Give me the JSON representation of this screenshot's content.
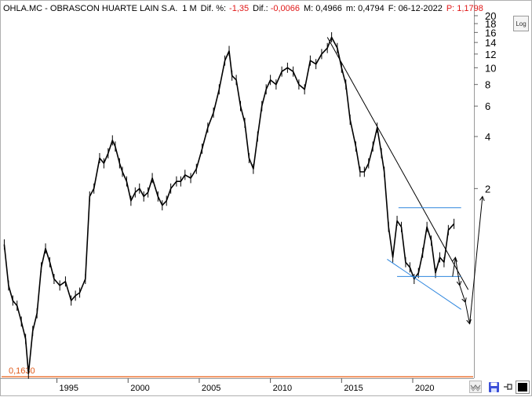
{
  "header": {
    "ticker": "OHLA.MC - OBRASCON HUARTE LAIN S.A.",
    "period": "1 M",
    "dif_pct_label": "Dif. %:",
    "dif_pct_value": "-1,35",
    "dif_label": "Dif.:",
    "dif_value": "-0,0066",
    "max_label": "M:",
    "max_value": "0,4966",
    "min_label": "m:",
    "min_value": "0,4794",
    "date_label": "F:",
    "date_value": "06-12-2022",
    "price_label": "P:",
    "price_value": "1,1798"
  },
  "toolbar": {
    "log_label": "Log",
    "wave_icon": "wave-icon",
    "save_icon": "floppy-disk-icon",
    "pin_icon": "pin-icon",
    "color_icon": "color-swatch-icon"
  },
  "colors": {
    "price": "#000000",
    "trendline": "#000000",
    "channel": "#2e86de",
    "support": "#e8590c",
    "value_label": "#e05a1a",
    "negative": "#e01818"
  },
  "chart_data": {
    "type": "line",
    "scale": "log",
    "interval": "monthly",
    "ylim": [
      0.16,
      20
    ],
    "xlim": [
      1991.0,
      2024.3
    ],
    "y_ticks": [
      2,
      4,
      6,
      8,
      10,
      12,
      14,
      16,
      18,
      20
    ],
    "x_ticks": [
      1995,
      2000,
      2005,
      2010,
      2015,
      2020
    ],
    "grid": false,
    "support_level": {
      "value": 0.163,
      "label": "0,1630"
    },
    "series": [
      {
        "x": [
          1991.3,
          1991.6,
          1991.9,
          1992.2,
          1992.5,
          1992.8,
          1993.0,
          1993.3,
          1993.6,
          1993.9,
          1994.2,
          1994.5,
          1994.8,
          1995.2,
          1995.6,
          1996.0,
          1996.3,
          1996.6,
          1997.0,
          1997.3,
          1997.6,
          1998.0,
          1998.3,
          1998.6,
          1998.9,
          1999.1,
          1999.4,
          1999.6,
          1999.9,
          2000.2,
          2000.5,
          2000.8,
          2001.1,
          2001.4,
          2001.7,
          2002.1,
          2002.4,
          2002.7,
          2003.0,
          2003.4,
          2003.7,
          2004.0,
          2004.4,
          2004.8,
          2005.2,
          2005.6,
          2006.0,
          2006.4,
          2006.8,
          2007.1,
          2007.3,
          2007.6,
          2007.9,
          2008.2,
          2008.5,
          2008.8,
          2009.1,
          2009.4,
          2009.7,
          2010.0,
          2010.4,
          2010.8,
          2011.2,
          2011.6,
          2012.0,
          2012.4,
          2012.8,
          2013.2,
          2013.6,
          2014.0,
          2014.3,
          2014.7,
          2015.0,
          2015.3,
          2015.6,
          2016.0,
          2016.3,
          2016.6,
          2016.9,
          2017.2,
          2017.5,
          2017.8,
          2018.0,
          2018.3,
          2018.6,
          2018.9,
          2019.2,
          2019.5,
          2019.8,
          2020.1,
          2020.4,
          2020.7,
          2021.0,
          2021.3,
          2021.6,
          2021.9,
          2022.2,
          2022.5,
          2022.9
        ],
        "y": [
          0.95,
          0.55,
          0.45,
          0.42,
          0.34,
          0.27,
          0.17,
          0.3,
          0.38,
          0.7,
          0.9,
          0.75,
          0.6,
          0.55,
          0.58,
          0.45,
          0.48,
          0.5,
          0.6,
          1.8,
          2.0,
          3.0,
          2.8,
          3.2,
          3.8,
          3.5,
          2.8,
          2.5,
          2.2,
          1.7,
          1.9,
          2.0,
          1.8,
          1.9,
          2.3,
          1.8,
          1.6,
          1.7,
          2.0,
          2.2,
          2.2,
          2.4,
          2.3,
          2.6,
          3.4,
          4.5,
          5.5,
          7.5,
          11.0,
          12.5,
          9.0,
          8.5,
          6.0,
          4.8,
          3.0,
          2.6,
          4.0,
          6.0,
          7.5,
          8.5,
          8.0,
          9.5,
          10.0,
          9.5,
          8.0,
          7.5,
          11.0,
          10.5,
          12.0,
          13.0,
          15.0,
          13.0,
          10.0,
          8.0,
          5.0,
          3.5,
          2.5,
          2.5,
          2.8,
          3.5,
          4.5,
          3.2,
          2.5,
          1.2,
          0.8,
          1.3,
          1.2,
          0.75,
          0.7,
          0.6,
          0.65,
          0.85,
          1.2,
          1.0,
          0.65,
          0.8,
          0.75,
          1.15,
          1.25
        ]
      }
    ],
    "annotations": [
      {
        "type": "trendline",
        "points": [
          [
            2014.0,
            15.0
          ],
          [
            2023.9,
            0.52
          ]
        ]
      },
      {
        "type": "hline",
        "value": 1.55,
        "from": 2019.0,
        "to": 2023.4
      },
      {
        "type": "hline",
        "value": 0.62,
        "from": 2018.9,
        "to": 2023.4
      },
      {
        "type": "channel-line",
        "points": [
          [
            2018.2,
            0.78
          ],
          [
            2023.4,
            0.4
          ]
        ]
      },
      {
        "type": "projection",
        "points": [
          [
            2022.8,
            0.62
          ],
          [
            2023.0,
            0.8
          ],
          [
            2023.3,
            0.55
          ],
          [
            2023.7,
            0.44
          ],
          [
            2024.0,
            0.33
          ],
          [
            2024.9,
            1.8
          ]
        ]
      }
    ]
  }
}
